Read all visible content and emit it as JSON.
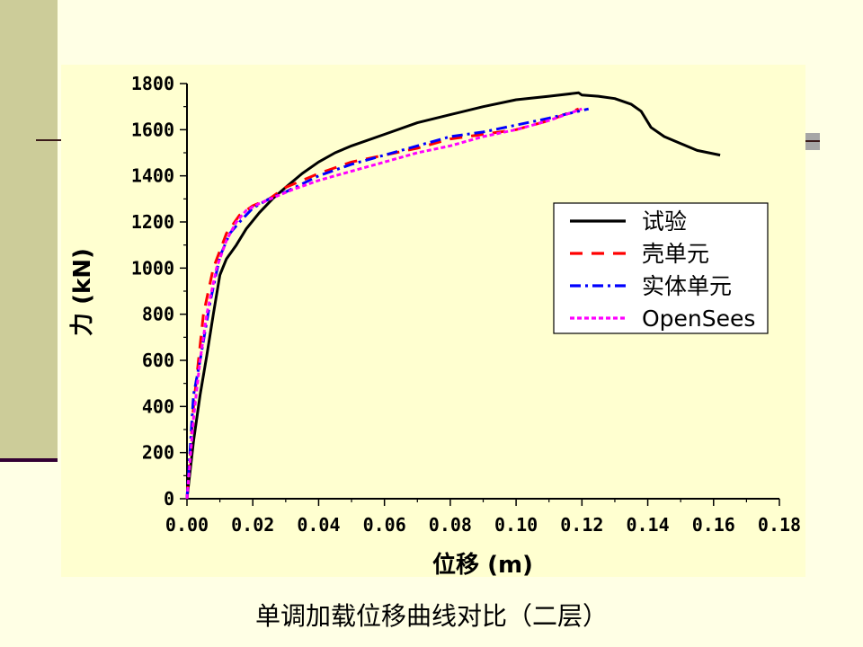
{
  "caption": "单调加载位移曲线对比（二层）",
  "chart_data": {
    "type": "line",
    "xlabel": "位移 (m)",
    "ylabel": "力 (kN)",
    "xlim": [
      0,
      0.18
    ],
    "ylim": [
      0,
      1800
    ],
    "x_ticks": [
      "0.00",
      "0.02",
      "0.04",
      "0.06",
      "0.08",
      "0.10",
      "0.12",
      "0.14",
      "0.16",
      "0.18"
    ],
    "y_ticks": [
      "0",
      "200",
      "400",
      "600",
      "800",
      "1000",
      "1200",
      "1400",
      "1600",
      "1800"
    ],
    "legend_position": "right",
    "series": [
      {
        "name": "试验",
        "color": "#000000",
        "style": "solid",
        "points": [
          [
            0.0,
            0
          ],
          [
            0.002,
            250
          ],
          [
            0.004,
            450
          ],
          [
            0.006,
            620
          ],
          [
            0.008,
            800
          ],
          [
            0.01,
            970
          ],
          [
            0.012,
            1040
          ],
          [
            0.015,
            1100
          ],
          [
            0.018,
            1170
          ],
          [
            0.022,
            1240
          ],
          [
            0.026,
            1300
          ],
          [
            0.03,
            1350
          ],
          [
            0.035,
            1410
          ],
          [
            0.04,
            1460
          ],
          [
            0.045,
            1500
          ],
          [
            0.05,
            1530
          ],
          [
            0.06,
            1580
          ],
          [
            0.07,
            1630
          ],
          [
            0.08,
            1665
          ],
          [
            0.09,
            1700
          ],
          [
            0.1,
            1730
          ],
          [
            0.11,
            1745
          ],
          [
            0.119,
            1760
          ],
          [
            0.12,
            1750
          ],
          [
            0.125,
            1745
          ],
          [
            0.13,
            1735
          ],
          [
            0.135,
            1710
          ],
          [
            0.138,
            1680
          ],
          [
            0.141,
            1610
          ],
          [
            0.145,
            1570
          ],
          [
            0.15,
            1540
          ],
          [
            0.155,
            1510
          ],
          [
            0.162,
            1490
          ]
        ]
      },
      {
        "name": "壳单元",
        "color": "#ff0000",
        "style": "dashed",
        "points": [
          [
            0.0,
            0
          ],
          [
            0.002,
            400
          ],
          [
            0.005,
            800
          ],
          [
            0.008,
            1000
          ],
          [
            0.012,
            1150
          ],
          [
            0.016,
            1230
          ],
          [
            0.02,
            1270
          ],
          [
            0.025,
            1300
          ],
          [
            0.03,
            1350
          ],
          [
            0.04,
            1410
          ],
          [
            0.05,
            1460
          ],
          [
            0.06,
            1490
          ],
          [
            0.07,
            1520
          ],
          [
            0.08,
            1560
          ],
          [
            0.09,
            1580
          ],
          [
            0.1,
            1600
          ],
          [
            0.11,
            1640
          ],
          [
            0.119,
            1690
          ]
        ]
      },
      {
        "name": "实体单元",
        "color": "#0000ff",
        "style": "dashdot",
        "points": [
          [
            0.0,
            0
          ],
          [
            0.002,
            450
          ],
          [
            0.004,
            600
          ],
          [
            0.007,
            850
          ],
          [
            0.01,
            1050
          ],
          [
            0.013,
            1150
          ],
          [
            0.016,
            1200
          ],
          [
            0.018,
            1230
          ],
          [
            0.02,
            1260
          ],
          [
            0.025,
            1300
          ],
          [
            0.03,
            1330
          ],
          [
            0.04,
            1400
          ],
          [
            0.05,
            1450
          ],
          [
            0.06,
            1490
          ],
          [
            0.07,
            1530
          ],
          [
            0.08,
            1570
          ],
          [
            0.09,
            1590
          ],
          [
            0.1,
            1620
          ],
          [
            0.11,
            1650
          ],
          [
            0.122,
            1690
          ]
        ]
      },
      {
        "name": "OpenSees",
        "color": "#ff00ff",
        "style": "dotted",
        "points": [
          [
            0.0,
            0
          ],
          [
            0.002,
            350
          ],
          [
            0.004,
            600
          ],
          [
            0.006,
            800
          ],
          [
            0.009,
            1000
          ],
          [
            0.012,
            1120
          ],
          [
            0.015,
            1200
          ],
          [
            0.018,
            1250
          ],
          [
            0.022,
            1280
          ],
          [
            0.027,
            1310
          ],
          [
            0.032,
            1340
          ],
          [
            0.04,
            1380
          ],
          [
            0.05,
            1420
          ],
          [
            0.06,
            1460
          ],
          [
            0.07,
            1500
          ],
          [
            0.08,
            1530
          ],
          [
            0.09,
            1570
          ],
          [
            0.1,
            1600
          ],
          [
            0.11,
            1640
          ],
          [
            0.12,
            1690
          ]
        ]
      }
    ]
  }
}
